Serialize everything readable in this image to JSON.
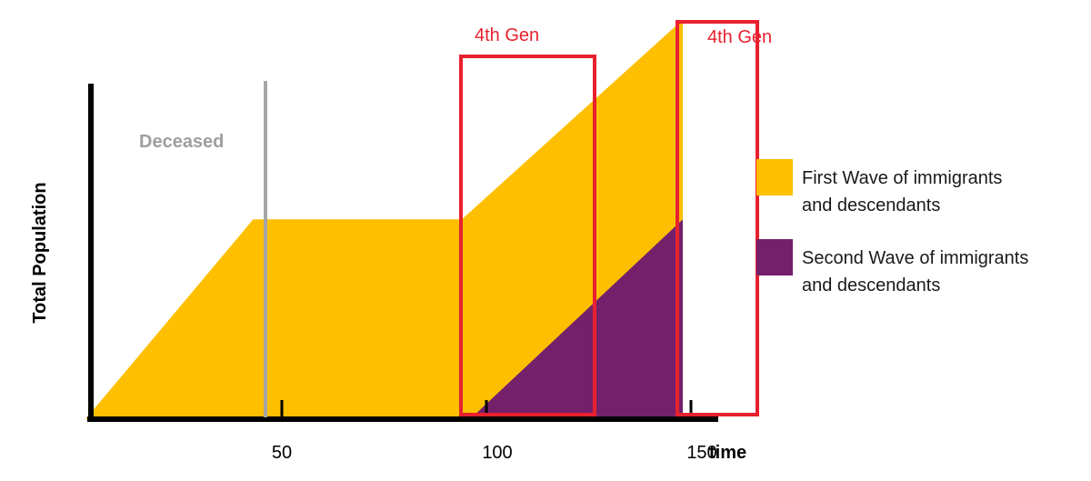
{
  "chart_data": {
    "type": "area",
    "title": "",
    "xlabel": "time",
    "ylabel": "Total Population",
    "xlim": [
      0,
      160
    ],
    "ylim": [
      0,
      100
    ],
    "xticks": [
      50,
      100,
      150
    ],
    "grid": false,
    "legend_position": "right",
    "series": [
      {
        "name": "First Wave of immigrants and descendants",
        "label_lines": [
          "First Wave of immigrants",
          "and descendants"
        ],
        "color": "#fdbf00",
        "points": [
          [
            2,
            0
          ],
          [
            43,
            59
          ],
          [
            94,
            59
          ],
          [
            148,
            118
          ]
        ]
      },
      {
        "name": "Second Wave of immigrants and descendants",
        "label_lines": [
          "Second Wave of immigrants",
          "and descendants"
        ],
        "color": "#74206b",
        "points": [
          [
            96,
            0
          ],
          [
            148,
            59
          ]
        ]
      }
    ],
    "annotations": [
      {
        "id": "deceased",
        "text": "Deceased",
        "type": "vline",
        "x": 46
      },
      {
        "id": "gen4-a",
        "text": "4th Gen",
        "type": "box",
        "x0": 94,
        "x1": 126
      },
      {
        "id": "gen4-b",
        "text": "4th Gen",
        "type": "box",
        "x0": 148,
        "x1": 168
      }
    ]
  }
}
